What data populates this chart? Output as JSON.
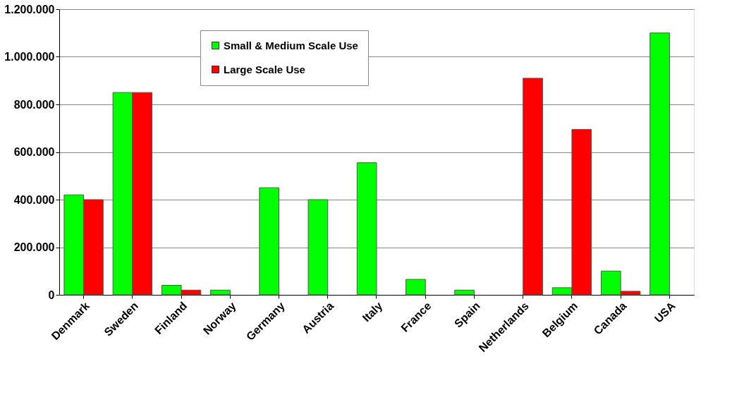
{
  "chart_data": {
    "type": "bar",
    "categories": [
      "Denmark",
      "Sweden",
      "Finland",
      "Norway",
      "Germany",
      "Austria",
      "Italy",
      "France",
      "Spain",
      "Netherlands",
      "Belgium",
      "Canada",
      "USA"
    ],
    "series": [
      {
        "name": "Small & Medium Scale Use",
        "color": "#00ff00",
        "values": [
          420000,
          850000,
          40000,
          20000,
          450000,
          400000,
          555000,
          65000,
          20000,
          null,
          30000,
          100000,
          1100000
        ]
      },
      {
        "name": "Large Scale Use",
        "color": "#ff0000",
        "values": [
          400000,
          850000,
          20000,
          null,
          null,
          null,
          null,
          null,
          null,
          910000,
          695000,
          15000,
          null
        ]
      }
    ],
    "ylim": [
      0,
      1200000
    ],
    "yticks": [
      {
        "value": 0,
        "label": "0"
      },
      {
        "value": 200000,
        "label": "200.000"
      },
      {
        "value": 400000,
        "label": "400.000"
      },
      {
        "value": 600000,
        "label": "600.000"
      },
      {
        "value": 800000,
        "label": "800.000"
      },
      {
        "value": 1000000,
        "label": "1.000.000"
      },
      {
        "value": 1200000,
        "label": "1.200.000"
      }
    ],
    "grid": "y",
    "legend": "top"
  }
}
